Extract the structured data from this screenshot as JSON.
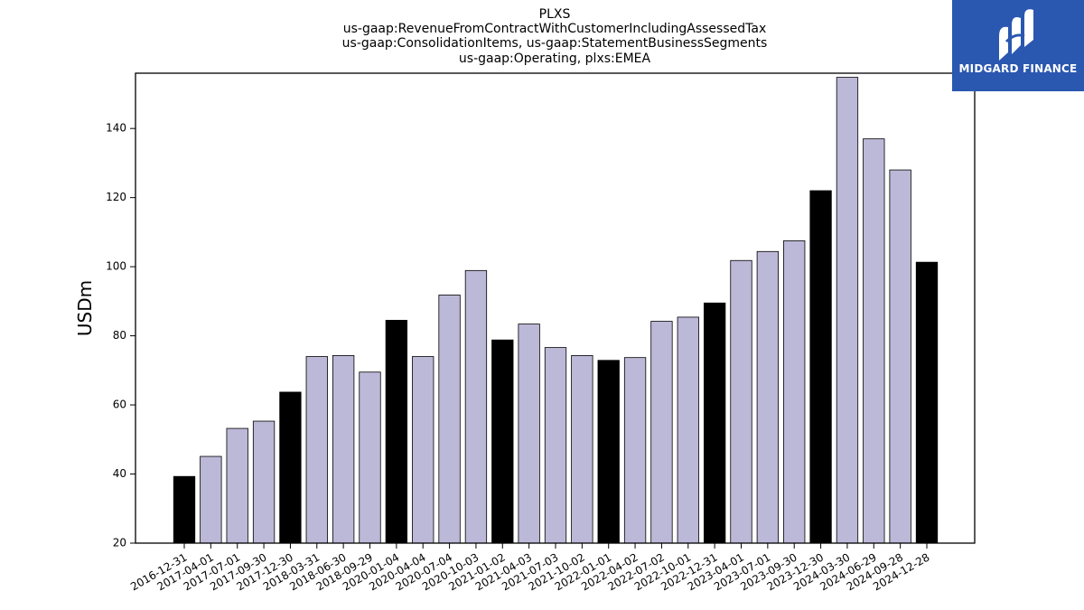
{
  "chart_data": {
    "type": "bar",
    "title_lines": [
      "PLXS",
      "us-gaap:RevenueFromContractWithCustomerIncludingAssessedTax",
      "us-gaap:ConsolidationItems, us-gaap:StatementBusinessSegments",
      "us-gaap:Operating, plxs:EMEA"
    ],
    "ylabel": "USDm",
    "xlabel": "",
    "ylim": [
      20,
      156
    ],
    "yticks": [
      20,
      40,
      60,
      80,
      100,
      120,
      140
    ],
    "grid": false,
    "categories": [
      "2016-12-31",
      "2017-04-01",
      "2017-07-01",
      "2017-09-30",
      "2017-12-30",
      "2018-03-31",
      "2018-06-30",
      "2018-09-29",
      "2020-01-04",
      "2020-04-04",
      "2020-07-04",
      "2020-10-03",
      "2021-01-02",
      "2021-04-03",
      "2021-07-03",
      "2021-10-02",
      "2022-01-01",
      "2022-04-02",
      "2022-07-02",
      "2022-10-01",
      "2022-12-31",
      "2023-04-01",
      "2023-07-01",
      "2023-09-30",
      "2023-12-30",
      "2024-03-30",
      "2024-06-29",
      "2024-09-28",
      "2024-12-28"
    ],
    "values": [
      39.3,
      45.1,
      53.2,
      55.3,
      63.7,
      74.0,
      74.3,
      69.5,
      84.5,
      74.0,
      91.8,
      98.9,
      78.8,
      83.4,
      76.6,
      74.3,
      72.9,
      73.7,
      84.2,
      85.4,
      89.5,
      101.8,
      104.4,
      107.5,
      122.0,
      154.8,
      137.0,
      128.0,
      101.3
    ],
    "highlight_indices": [
      0,
      4,
      8,
      12,
      16,
      20,
      24,
      28
    ],
    "colors": {
      "default": "#bcb8d8",
      "highlight": "#000000",
      "edge": "#000000"
    }
  },
  "logo": {
    "text": "MIDGARD FINANCE",
    "background": "#2a57b0"
  }
}
